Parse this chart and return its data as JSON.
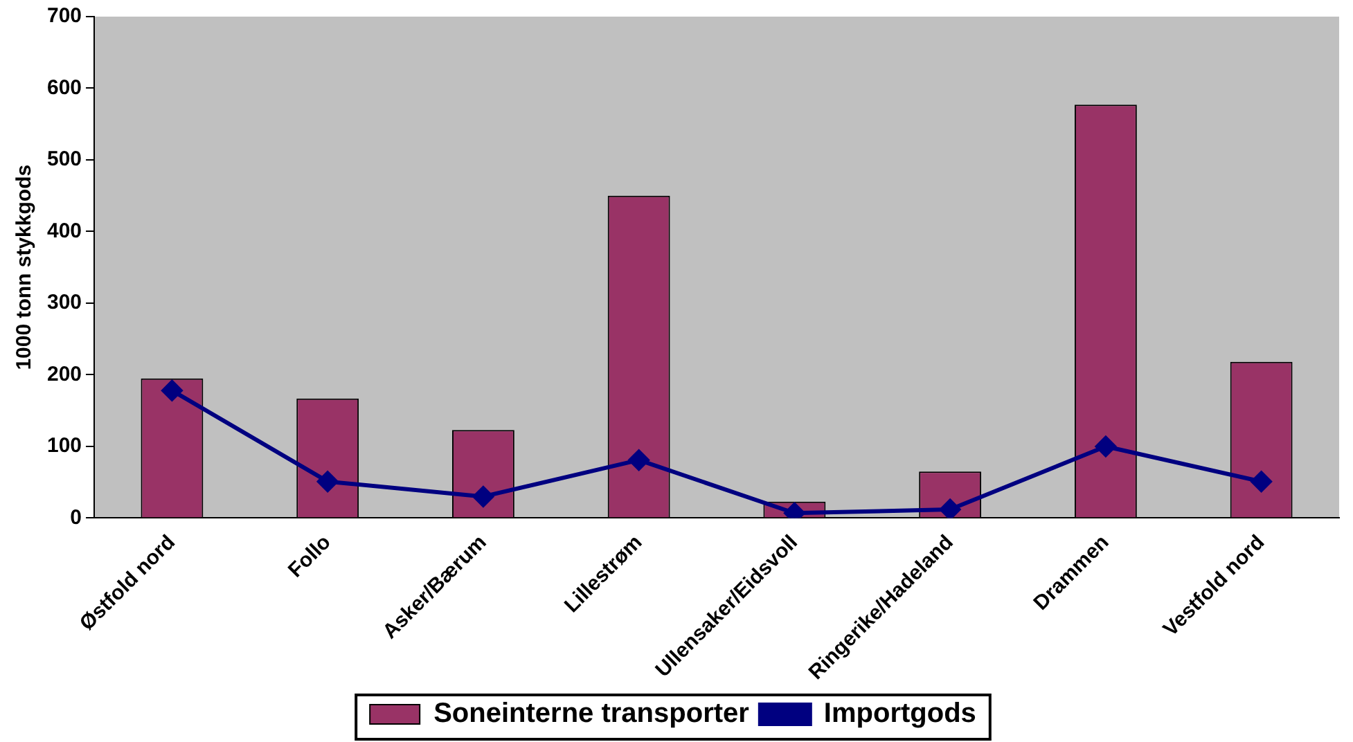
{
  "chart_data": {
    "type": "bar",
    "ylabel": "1000 tonn stykkgods",
    "categories": [
      "Østfold nord",
      "Follo",
      "Asker/Bærum",
      "Lillestrøm",
      "Ullensaker/Eidsvoll",
      "Ringerike/Hadeland",
      "Drammen",
      "Vestfold nord"
    ],
    "series": [
      {
        "name": "Soneinterne transporter",
        "color": "#993366",
        "values": [
          195,
          167,
          123,
          450,
          23,
          65,
          577,
          218
        ]
      },
      {
        "name": "Importgods",
        "type": "line",
        "color": "#000080",
        "values": [
          178,
          51,
          30,
          81,
          7,
          12,
          100,
          51
        ]
      }
    ],
    "ylim": [
      0,
      700
    ],
    "yticks": [
      0,
      100,
      200,
      300,
      400,
      500,
      600,
      700
    ],
    "grid": false,
    "legend": "bottom",
    "marker": "diamond",
    "line_style": "solid"
  }
}
